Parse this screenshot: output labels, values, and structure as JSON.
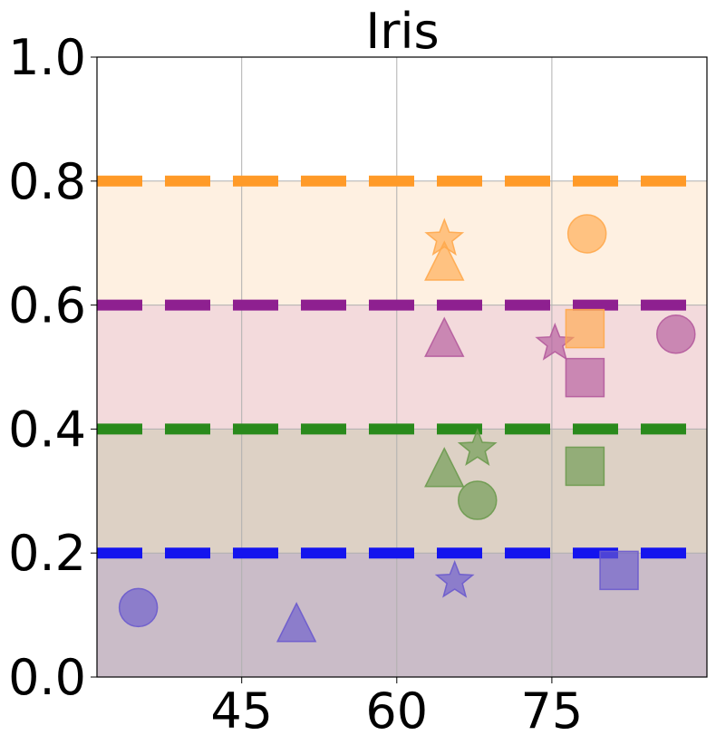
{
  "chart_data": {
    "type": "scatter",
    "title": "Iris",
    "xlabel": "",
    "ylabel": "",
    "xlim": [
      31,
      90
    ],
    "ylim": [
      0.0,
      1.0
    ],
    "xticks": [
      45,
      60,
      75
    ],
    "xtick_labels": [
      "45",
      "60",
      "75"
    ],
    "yticks": [
      0.0,
      0.2,
      0.4,
      0.6,
      0.8,
      1.0
    ],
    "ytick_labels": [
      "0.0",
      "0.2",
      "0.4",
      "0.6",
      "0.8",
      "1.0"
    ],
    "grid": true,
    "bands": [
      {
        "y0": 0.0,
        "y1": 0.2,
        "fill": "#CABCC8",
        "line": "#1414EE",
        "line_at": 0.2
      },
      {
        "y0": 0.2,
        "y1": 0.4,
        "fill": "#DDD1C5",
        "line": "#2A8A1C",
        "line_at": 0.4
      },
      {
        "y0": 0.4,
        "y1": 0.6,
        "fill": "#F3DADC",
        "line": "#8E2090",
        "line_at": 0.6
      },
      {
        "y0": 0.6,
        "y1": 0.8,
        "fill": "#FEF0E1",
        "line": "#FF9A28",
        "line_at": 0.8
      }
    ],
    "series": [
      {
        "color": "#6A5ACD",
        "points": [
          {
            "marker": "circle",
            "x": 35.0,
            "y": 0.112
          },
          {
            "marker": "triangle",
            "x": 50.3,
            "y": 0.085
          },
          {
            "marker": "star",
            "x": 65.6,
            "y": 0.155
          },
          {
            "marker": "square",
            "x": 81.5,
            "y": 0.172
          }
        ]
      },
      {
        "color": "#6B9A4E",
        "points": [
          {
            "marker": "circle",
            "x": 67.8,
            "y": 0.285
          },
          {
            "marker": "triangle",
            "x": 64.6,
            "y": 0.335
          },
          {
            "marker": "star",
            "x": 67.8,
            "y": 0.368
          },
          {
            "marker": "square",
            "x": 78.2,
            "y": 0.34
          }
        ]
      },
      {
        "color": "#B45A9C",
        "points": [
          {
            "marker": "circle",
            "x": 87.0,
            "y": 0.553
          },
          {
            "marker": "triangle",
            "x": 64.6,
            "y": 0.545
          },
          {
            "marker": "star",
            "x": 75.3,
            "y": 0.538
          },
          {
            "marker": "square",
            "x": 78.2,
            "y": 0.483
          }
        ]
      },
      {
        "color": "#FFA94D",
        "points": [
          {
            "marker": "circle",
            "x": 78.4,
            "y": 0.715
          },
          {
            "marker": "triangle",
            "x": 64.6,
            "y": 0.668
          },
          {
            "marker": "star",
            "x": 64.6,
            "y": 0.707
          },
          {
            "marker": "square",
            "x": 78.2,
            "y": 0.562
          }
        ]
      }
    ]
  }
}
